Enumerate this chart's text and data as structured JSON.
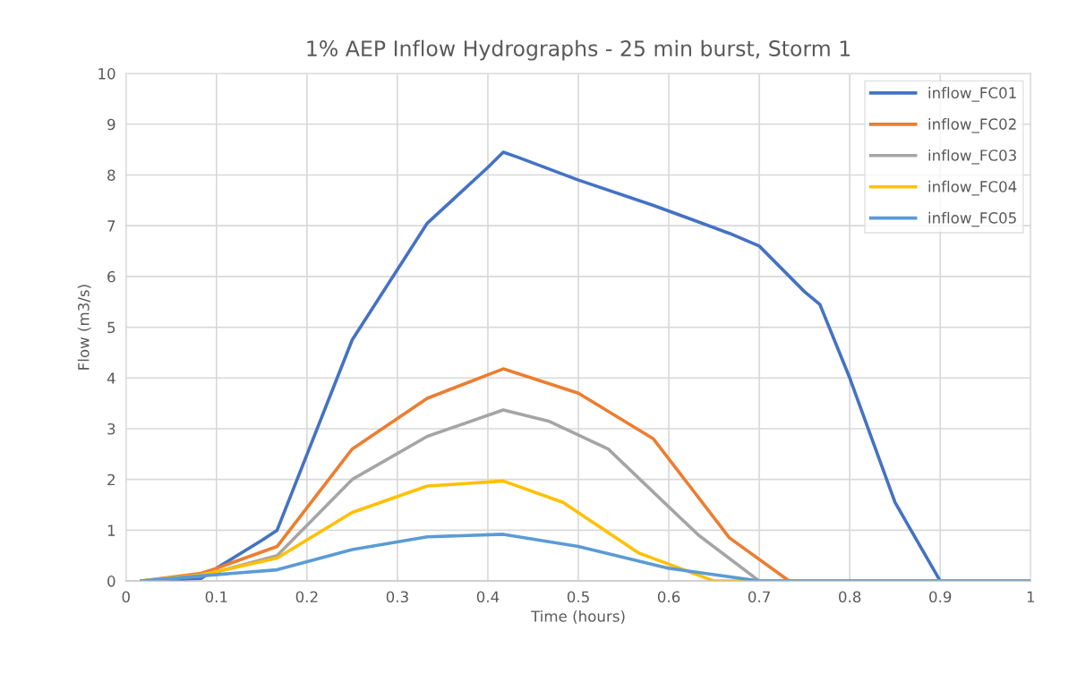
{
  "chart_data": {
    "type": "line",
    "title": "1% AEP Inflow Hydrographs - 25 min burst, Storm 1",
    "xlabel": "Time (hours)",
    "ylabel": "Flow (m3/s)",
    "series": [
      {
        "name": "inflow_FC01",
        "color": "#4472c4",
        "x": [
          0.017,
          0.083,
          0.1,
          0.15,
          0.167,
          0.25,
          0.333,
          0.4,
          0.417,
          0.433,
          0.5,
          0.583,
          0.667,
          0.7,
          0.75,
          0.767,
          0.8,
          0.85,
          0.9,
          1.0
        ],
        "values": [
          0,
          0.05,
          0.25,
          0.8,
          1.0,
          4.75,
          7.05,
          8.15,
          8.45,
          8.35,
          7.9,
          7.4,
          6.85,
          6.6,
          5.7,
          5.45,
          4.0,
          1.55,
          0,
          0
        ]
      },
      {
        "name": "inflow_FC02",
        "color": "#ed7d31",
        "x": [
          0.017,
          0.083,
          0.1,
          0.167,
          0.25,
          0.333,
          0.417,
          0.5,
          0.583,
          0.667,
          0.733,
          1.0
        ],
        "values": [
          0,
          0.15,
          0.25,
          0.68,
          2.6,
          3.6,
          4.18,
          3.7,
          2.8,
          0.85,
          0,
          0
        ]
      },
      {
        "name": "inflow_FC03",
        "color": "#a5a5a5",
        "x": [
          0.017,
          0.083,
          0.167,
          0.25,
          0.333,
          0.417,
          0.467,
          0.533,
          0.633,
          0.7,
          1.0
        ],
        "values": [
          0,
          0.1,
          0.5,
          2.0,
          2.85,
          3.37,
          3.15,
          2.6,
          0.9,
          0,
          0
        ]
      },
      {
        "name": "inflow_FC04",
        "color": "#ffc000",
        "x": [
          0.017,
          0.083,
          0.167,
          0.25,
          0.333,
          0.417,
          0.483,
          0.567,
          0.65,
          1.0
        ],
        "values": [
          0,
          0.12,
          0.45,
          1.35,
          1.87,
          1.97,
          1.55,
          0.55,
          0,
          0
        ]
      },
      {
        "name": "inflow_FC05",
        "color": "#5b9bd5",
        "x": [
          0.017,
          0.083,
          0.167,
          0.25,
          0.333,
          0.417,
          0.5,
          0.6,
          0.7,
          1.0
        ],
        "values": [
          0,
          0.1,
          0.22,
          0.62,
          0.87,
          0.92,
          0.68,
          0.25,
          0,
          0
        ]
      }
    ],
    "xlim": [
      0,
      1
    ],
    "xticks": [
      0,
      0.1,
      0.2,
      0.3,
      0.4,
      0.5,
      0.6,
      0.7,
      0.8,
      0.9,
      1
    ],
    "ylim": [
      0,
      10
    ],
    "yticks": [
      0,
      1,
      2,
      3,
      4,
      5,
      6,
      7,
      8,
      9,
      10
    ],
    "grid": true,
    "legend": "top right",
    "marker": "none",
    "line_style": "solid"
  }
}
